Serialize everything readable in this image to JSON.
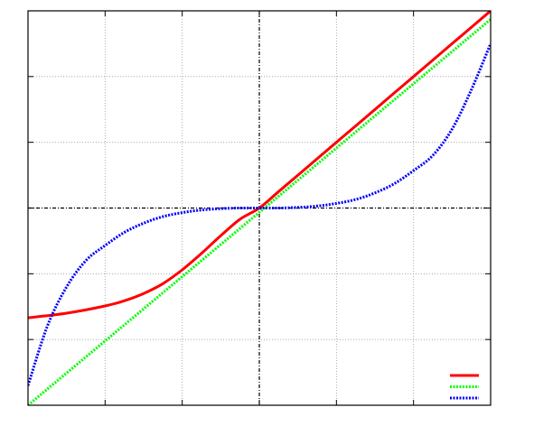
{
  "chart_data": {
    "type": "line",
    "title": "",
    "xlabel": "",
    "ylabel": "",
    "xlim": [
      -3,
      3
    ],
    "ylim": [
      -3,
      3
    ],
    "grid": true,
    "grid_x": [
      -2,
      -1,
      0,
      1,
      2
    ],
    "grid_y": [
      -2,
      -1,
      0,
      1,
      2
    ],
    "zero_axes": true,
    "legend_position": "bottom-right",
    "series": [
      {
        "color": "#ff0000",
        "line_style": "solid",
        "x": [
          -3.0,
          -2.5,
          -2.0,
          -1.75,
          -1.5,
          -1.25,
          -1.0,
          -0.75,
          -0.5,
          -0.25,
          0.0,
          0.25,
          0.5,
          0.75,
          1.0,
          1.25,
          1.5,
          1.75,
          2.0,
          2.5,
          3.0
        ],
        "y": [
          -1.67,
          -1.6,
          -1.49,
          -1.41,
          -1.3,
          -1.15,
          -0.94,
          -0.69,
          -0.42,
          -0.17,
          0.0,
          0.25,
          0.5,
          0.75,
          1.0,
          1.25,
          1.5,
          1.75,
          2.0,
          2.5,
          3.0
        ]
      },
      {
        "color": "#00ff00",
        "line_style": "dotted",
        "x": [
          -3.0,
          3.0
        ],
        "y": [
          -3.0,
          2.87
        ]
      },
      {
        "color": "#0000ff",
        "line_style": "dotted",
        "x": [
          -3.0,
          -2.75,
          -2.5,
          -2.25,
          -2.0,
          -1.75,
          -1.5,
          -1.25,
          -1.0,
          -0.75,
          -0.5,
          -0.25,
          0.0,
          0.25,
          0.5,
          0.75,
          1.0,
          1.25,
          1.5,
          1.75,
          2.0,
          2.25,
          2.5,
          2.75,
          3.0
        ],
        "y": [
          -2.7,
          -1.8,
          -1.2,
          -0.8,
          -0.57,
          -0.37,
          -0.23,
          -0.13,
          -0.07,
          -0.03,
          -0.01,
          0.0,
          0.0,
          0.0,
          0.01,
          0.03,
          0.07,
          0.13,
          0.23,
          0.37,
          0.57,
          0.8,
          1.2,
          1.8,
          2.5
        ]
      }
    ]
  }
}
